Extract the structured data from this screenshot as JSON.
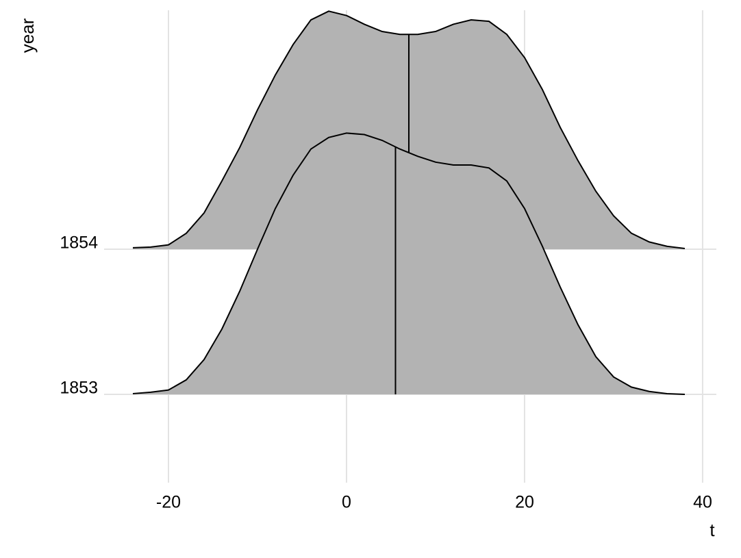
{
  "chart_data": {
    "type": "ridgeline",
    "x_label": "t",
    "y_label": "year",
    "x": [
      -24,
      -22,
      -20,
      -18,
      -16,
      -14,
      -12,
      -10,
      -8,
      -6,
      -4,
      -2,
      0,
      2,
      4,
      6,
      8,
      10,
      12,
      14,
      16,
      18,
      20,
      22,
      24,
      26,
      28,
      30,
      32,
      34,
      36,
      38
    ],
    "ridges": [
      {
        "category": "1853",
        "median": 5.5,
        "values": [
          0.005,
          0.015,
          0.03,
          0.1,
          0.24,
          0.45,
          0.71,
          1.0,
          1.28,
          1.51,
          1.69,
          1.77,
          1.8,
          1.79,
          1.75,
          1.69,
          1.64,
          1.6,
          1.58,
          1.58,
          1.56,
          1.47,
          1.28,
          1.02,
          0.74,
          0.48,
          0.26,
          0.12,
          0.05,
          0.02,
          0.005,
          0.0
        ]
      },
      {
        "category": "1854",
        "median": 7,
        "values": [
          0.01,
          0.015,
          0.03,
          0.11,
          0.25,
          0.47,
          0.7,
          0.96,
          1.2,
          1.41,
          1.58,
          1.64,
          1.61,
          1.55,
          1.5,
          1.48,
          1.48,
          1.5,
          1.55,
          1.58,
          1.57,
          1.48,
          1.32,
          1.1,
          0.84,
          0.61,
          0.4,
          0.23,
          0.11,
          0.05,
          0.02,
          0.005
        ]
      }
    ],
    "fill": "#b3b3b3",
    "xlim": [
      -27.23,
      41.54
    ],
    "xticks": [
      -20,
      0,
      20,
      40
    ],
    "grid": true
  }
}
